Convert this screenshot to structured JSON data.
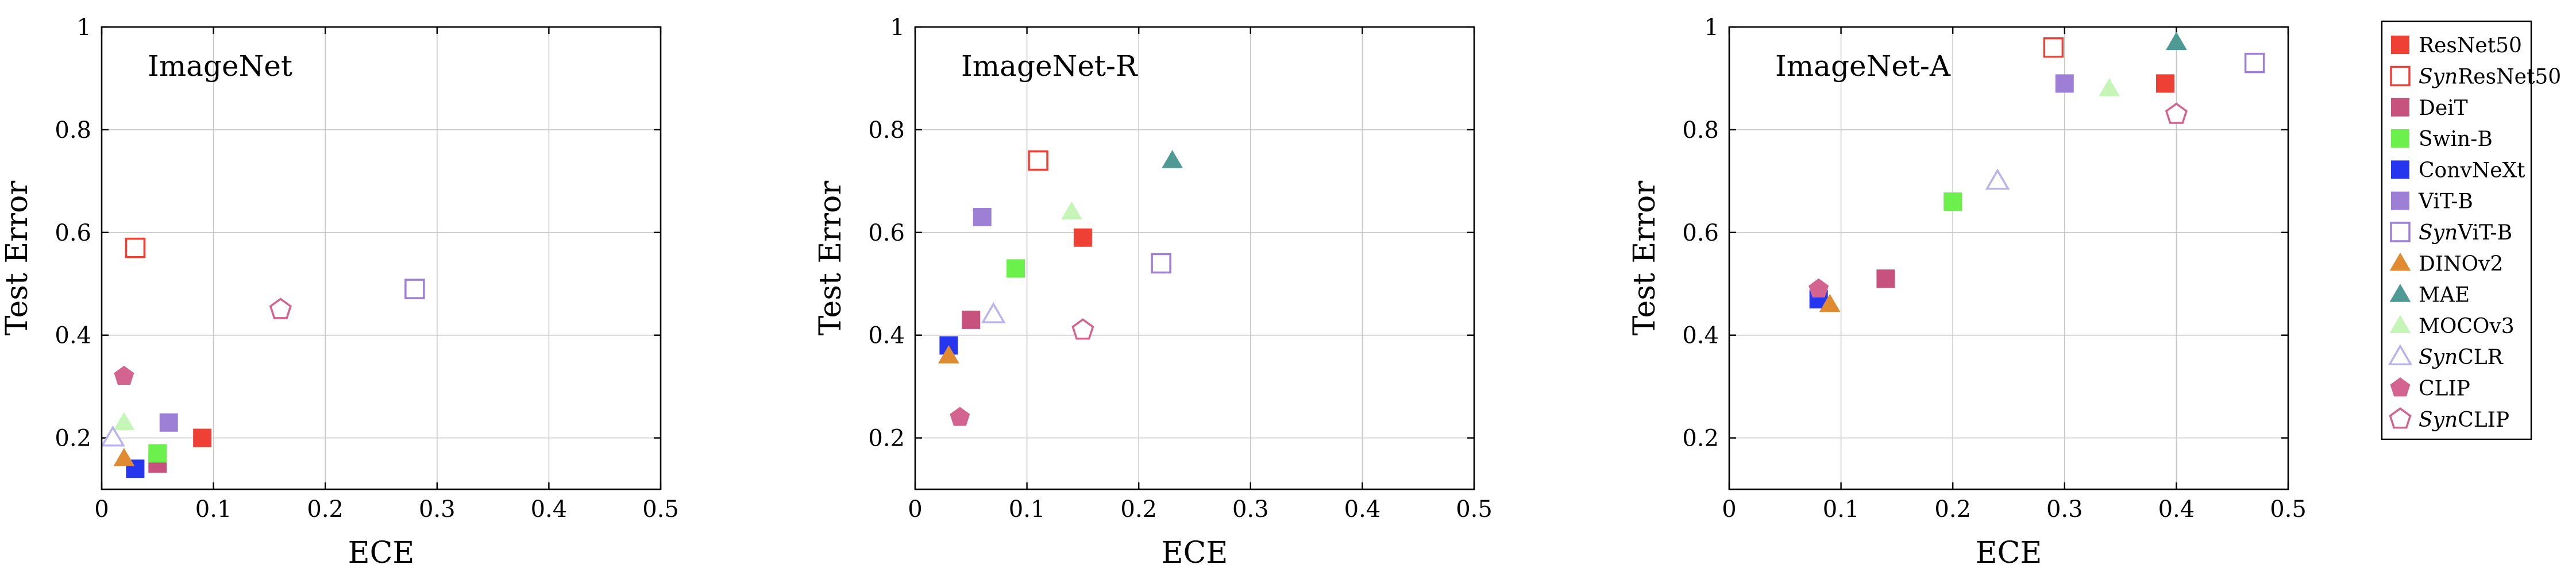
{
  "chart_data": [
    {
      "type": "scatter",
      "title": "ImageNet",
      "xlabel": "ECE",
      "ylabel": "Test Error",
      "xlim": [
        0,
        0.5
      ],
      "ylim": [
        0.1,
        1
      ],
      "xticks": [
        0,
        0.1,
        0.2,
        0.3,
        0.4,
        0.5
      ],
      "yticks": [
        0.2,
        0.4,
        0.6,
        0.8,
        1
      ],
      "xtick_labels": [
        "0",
        "0.1",
        "0.2",
        "0.3",
        "0.4",
        "0.5"
      ],
      "ytick_labels": [
        "0.2",
        "0.4",
        "0.6",
        "0.8",
        "1"
      ],
      "grid": true,
      "points": [
        {
          "series": "ResNet50",
          "x": 0.09,
          "y": 0.2
        },
        {
          "series": "SynResNet50",
          "x": 0.03,
          "y": 0.57
        },
        {
          "series": "DeiT",
          "x": 0.05,
          "y": 0.15
        },
        {
          "series": "Swin-B",
          "x": 0.05,
          "y": 0.17
        },
        {
          "series": "ConvNeXt",
          "x": 0.03,
          "y": 0.14
        },
        {
          "series": "ViT-B",
          "x": 0.06,
          "y": 0.23
        },
        {
          "series": "SynViT-B",
          "x": 0.28,
          "y": 0.49
        },
        {
          "series": "DINOv2",
          "x": 0.02,
          "y": 0.16
        },
        {
          "series": "MOCOv3",
          "x": 0.02,
          "y": 0.23
        },
        {
          "series": "SynCLR",
          "x": 0.01,
          "y": 0.2
        },
        {
          "series": "CLIP",
          "x": 0.02,
          "y": 0.32
        },
        {
          "series": "SynCLIP",
          "x": 0.16,
          "y": 0.45
        }
      ]
    },
    {
      "type": "scatter",
      "title": "ImageNet-R",
      "xlabel": "ECE",
      "ylabel": "Test Error",
      "xlim": [
        0,
        0.5
      ],
      "ylim": [
        0.1,
        1
      ],
      "xticks": [
        0,
        0.1,
        0.2,
        0.3,
        0.4,
        0.5
      ],
      "yticks": [
        0.2,
        0.4,
        0.6,
        0.8,
        1
      ],
      "xtick_labels": [
        "0",
        "0.1",
        "0.2",
        "0.3",
        "0.4",
        "0.5"
      ],
      "ytick_labels": [
        "0.2",
        "0.4",
        "0.6",
        "0.8",
        "1"
      ],
      "grid": true,
      "points": [
        {
          "series": "ResNet50",
          "x": 0.15,
          "y": 0.59
        },
        {
          "series": "SynResNet50",
          "x": 0.11,
          "y": 0.74
        },
        {
          "series": "DeiT",
          "x": 0.05,
          "y": 0.43
        },
        {
          "series": "Swin-B",
          "x": 0.09,
          "y": 0.53
        },
        {
          "series": "ConvNeXt",
          "x": 0.03,
          "y": 0.38
        },
        {
          "series": "ViT-B",
          "x": 0.06,
          "y": 0.63
        },
        {
          "series": "SynViT-B",
          "x": 0.22,
          "y": 0.54
        },
        {
          "series": "DINOv2",
          "x": 0.03,
          "y": 0.36
        },
        {
          "series": "MAE",
          "x": 0.23,
          "y": 0.74
        },
        {
          "series": "MOCOv3",
          "x": 0.14,
          "y": 0.64
        },
        {
          "series": "SynCLR",
          "x": 0.07,
          "y": 0.44
        },
        {
          "series": "CLIP",
          "x": 0.04,
          "y": 0.24
        },
        {
          "series": "SynCLIP",
          "x": 0.15,
          "y": 0.41
        }
      ]
    },
    {
      "type": "scatter",
      "title": "ImageNet-A",
      "xlabel": "ECE",
      "ylabel": "Test Error",
      "xlim": [
        0,
        0.5
      ],
      "ylim": [
        0.1,
        1
      ],
      "xticks": [
        0,
        0.1,
        0.2,
        0.3,
        0.4,
        0.5
      ],
      "yticks": [
        0.2,
        0.4,
        0.6,
        0.8,
        1
      ],
      "xtick_labels": [
        "0",
        "0.1",
        "0.2",
        "0.3",
        "0.4",
        "0.5"
      ],
      "ytick_labels": [
        "0.2",
        "0.4",
        "0.6",
        "0.8",
        "1"
      ],
      "grid": true,
      "points": [
        {
          "series": "ResNet50",
          "x": 0.39,
          "y": 0.89
        },
        {
          "series": "SynResNet50",
          "x": 0.29,
          "y": 0.96
        },
        {
          "series": "DeiT",
          "x": 0.14,
          "y": 0.51
        },
        {
          "series": "Swin-B",
          "x": 0.2,
          "y": 0.66
        },
        {
          "series": "ConvNeXt",
          "x": 0.08,
          "y": 0.47
        },
        {
          "series": "ViT-B",
          "x": 0.3,
          "y": 0.89
        },
        {
          "series": "SynViT-B",
          "x": 0.47,
          "y": 0.93
        },
        {
          "series": "DINOv2",
          "x": 0.09,
          "y": 0.46
        },
        {
          "series": "MAE",
          "x": 0.4,
          "y": 0.97
        },
        {
          "series": "MOCOv3",
          "x": 0.34,
          "y": 0.88
        },
        {
          "series": "SynCLR",
          "x": 0.24,
          "y": 0.7
        },
        {
          "series": "CLIP",
          "x": 0.08,
          "y": 0.49
        },
        {
          "series": "SynCLIP",
          "x": 0.4,
          "y": 0.83
        }
      ]
    }
  ],
  "legend": {
    "placement": "right",
    "entries": [
      {
        "key": "ResNet50",
        "prefix": "",
        "label": "ResNet50",
        "marker": "square",
        "color": "#ee4035",
        "filled": true
      },
      {
        "key": "SynResNet50",
        "prefix": "Syn",
        "label": "ResNet50",
        "marker": "square",
        "color": "#ee4035",
        "filled": false
      },
      {
        "key": "DeiT",
        "prefix": "",
        "label": "DeiT",
        "marker": "square",
        "color": "#c8527e",
        "filled": true
      },
      {
        "key": "Swin-B",
        "prefix": "",
        "label": "Swin-B",
        "marker": "square",
        "color": "#6cf04c",
        "filled": true
      },
      {
        "key": "ConvNeXt",
        "prefix": "",
        "label": "ConvNeXt",
        "marker": "square",
        "color": "#2536ee",
        "filled": true
      },
      {
        "key": "ViT-B",
        "prefix": "",
        "label": "ViT-B",
        "marker": "square",
        "color": "#9e7fd6",
        "filled": true
      },
      {
        "key": "SynViT-B",
        "prefix": "Syn",
        "label": "ViT-B",
        "marker": "square",
        "color": "#9e7fd6",
        "filled": false
      },
      {
        "key": "DINOv2",
        "prefix": "",
        "label": "DINOv2",
        "marker": "triangle",
        "color": "#e08a32",
        "filled": true
      },
      {
        "key": "MAE",
        "prefix": "",
        "label": "MAE",
        "marker": "triangle",
        "color": "#4f9a95",
        "filled": true
      },
      {
        "key": "MOCOv3",
        "prefix": "",
        "label": "MOCOv3",
        "marker": "triangle",
        "color": "#c6f5b8",
        "filled": true
      },
      {
        "key": "SynCLR",
        "prefix": "Syn",
        "label": "CLR",
        "marker": "triangle",
        "color": "#b9b2ee",
        "filled": false
      },
      {
        "key": "CLIP",
        "prefix": "",
        "label": "CLIP",
        "marker": "pentagon",
        "color": "#d2648f",
        "filled": true
      },
      {
        "key": "SynCLIP",
        "prefix": "Syn",
        "label": "CLIP",
        "marker": "pentagon",
        "color": "#d2648f",
        "filled": false
      }
    ]
  }
}
